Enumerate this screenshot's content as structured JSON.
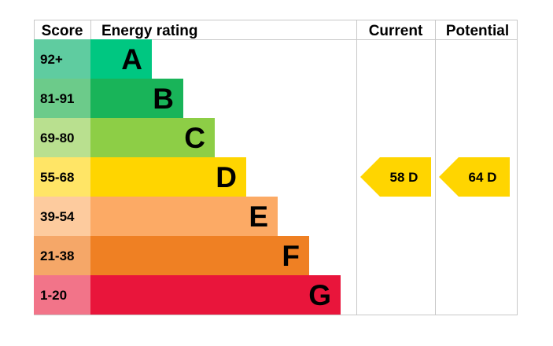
{
  "chart_data": {
    "type": "bar",
    "headers": {
      "score": "Score",
      "rating": "Energy rating",
      "current": "Current",
      "potential": "Potential"
    },
    "bands": [
      {
        "letter": "A",
        "range": "92+",
        "min": 92,
        "max": 100,
        "color": "#00c781",
        "score_color": "#5fcca0"
      },
      {
        "letter": "B",
        "range": "81-91",
        "min": 81,
        "max": 91,
        "color": "#19b459",
        "score_color": "#6ccb8a"
      },
      {
        "letter": "C",
        "range": "69-80",
        "min": 69,
        "max": 80,
        "color": "#8dce46",
        "score_color": "#b9e08f"
      },
      {
        "letter": "D",
        "range": "55-68",
        "min": 55,
        "max": 68,
        "color": "#ffd500",
        "score_color": "#ffe566"
      },
      {
        "letter": "E",
        "range": "39-54",
        "min": 39,
        "max": 54,
        "color": "#fcaa65",
        "score_color": "#fdcb9e"
      },
      {
        "letter": "F",
        "range": "21-38",
        "min": 21,
        "max": 38,
        "color": "#ef8023",
        "score_color": "#f5a768"
      },
      {
        "letter": "G",
        "range": "1-20",
        "min": 1,
        "max": 20,
        "color": "#e9153b",
        "score_color": "#f27489"
      }
    ],
    "current": {
      "value": 58,
      "letter": "D",
      "label": "58  D",
      "color": "#ffd500"
    },
    "potential": {
      "value": 64,
      "letter": "D",
      "label": "64  D",
      "color": "#ffd500"
    }
  }
}
